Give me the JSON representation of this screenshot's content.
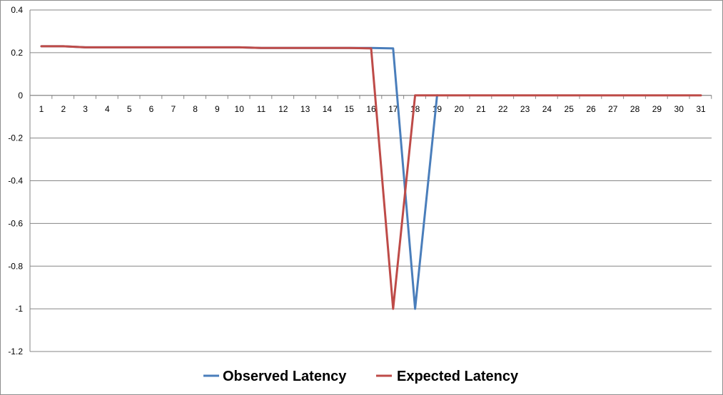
{
  "chart_data": {
    "type": "line",
    "title": "",
    "xlabel": "",
    "ylabel": "",
    "categories": [
      "1",
      "2",
      "3",
      "4",
      "5",
      "6",
      "7",
      "8",
      "9",
      "10",
      "11",
      "12",
      "13",
      "14",
      "15",
      "16",
      "17",
      "18",
      "19",
      "20",
      "21",
      "22",
      "23",
      "24",
      "25",
      "26",
      "27",
      "28",
      "29",
      "30",
      "31"
    ],
    "ylim": [
      -1.2,
      0.4
    ],
    "yticks": [
      0.4,
      0.2,
      0,
      -0.2,
      -0.4,
      -0.6,
      -0.8,
      -1,
      -1.2
    ],
    "ytick_labels": [
      "0.4",
      "0.2",
      "0",
      "-0.2",
      "-0.4",
      "-0.6",
      "-0.8",
      "-1",
      "-1.2"
    ],
    "grid": true,
    "legend_position": "bottom",
    "series": [
      {
        "name": "Observed Latency",
        "color": "#4A7EBB",
        "values": [
          0.23,
          0.23,
          0.225,
          0.225,
          0.225,
          0.225,
          0.225,
          0.225,
          0.225,
          0.225,
          0.222,
          0.222,
          0.222,
          0.222,
          0.222,
          0.222,
          0.22,
          -1,
          0,
          null,
          null,
          null,
          null,
          null,
          null,
          null,
          null,
          null,
          null,
          null,
          null
        ]
      },
      {
        "name": "Expected Latency",
        "color": "#BE4B48",
        "values": [
          0.23,
          0.23,
          0.225,
          0.225,
          0.225,
          0.225,
          0.225,
          0.225,
          0.225,
          0.225,
          0.222,
          0.222,
          0.222,
          0.222,
          0.222,
          0.22,
          -1,
          0,
          0,
          0,
          0,
          0,
          0,
          0,
          0,
          0,
          0,
          0,
          0,
          0,
          0
        ]
      }
    ]
  }
}
